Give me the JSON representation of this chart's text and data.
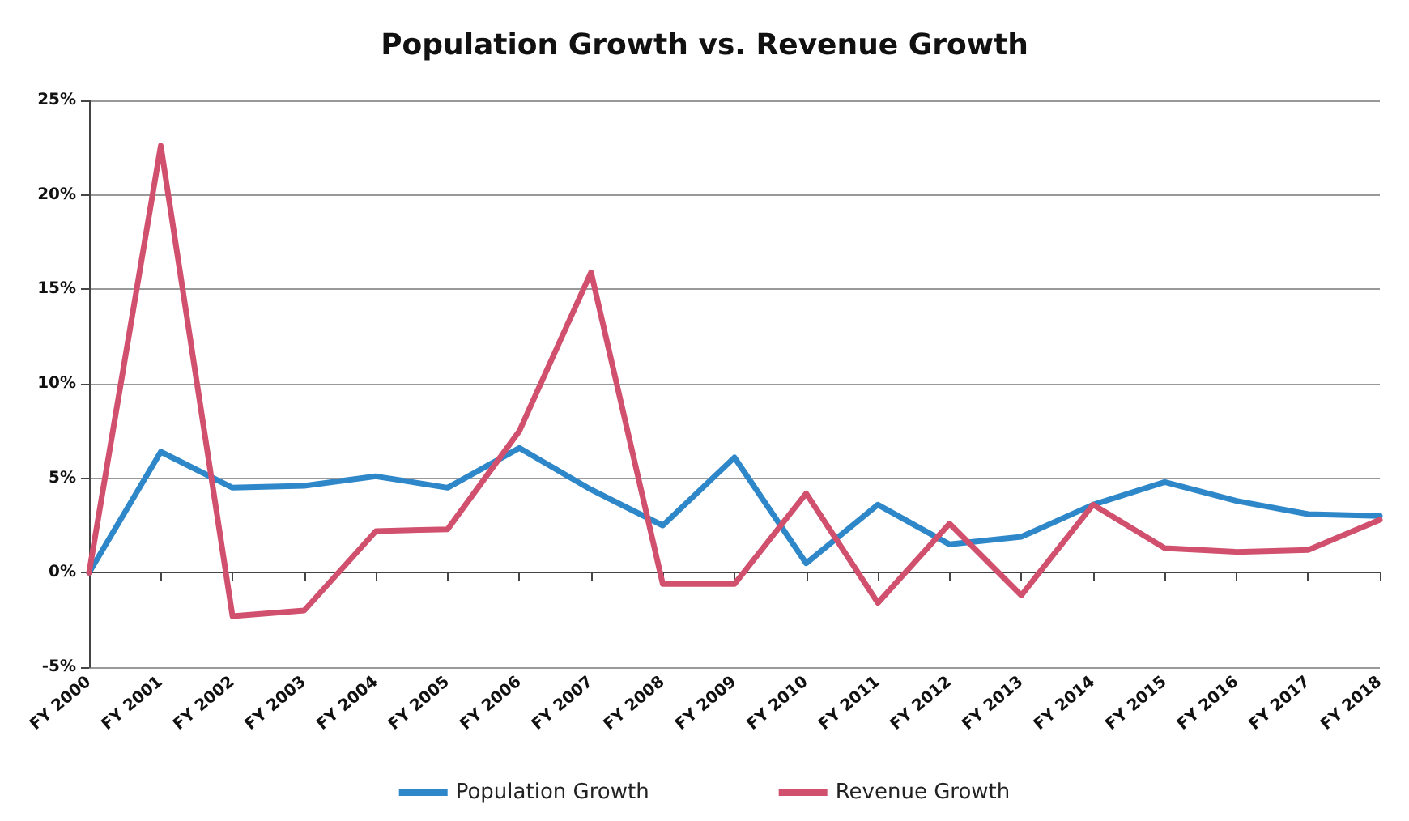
{
  "chart_data": {
    "type": "line",
    "title": "Population Growth vs. Revenue Growth",
    "categories": [
      "FY 2000",
      "FY 2001",
      "FY 2002",
      "FY 2003",
      "FY 2004",
      "FY 2005",
      "FY 2006",
      "FY 2007",
      "FY 2008",
      "FY 2009",
      "FY 2010",
      "FY 2011",
      "FY 2012",
      "FY 2013",
      "FY 2014",
      "FY 2015",
      "FY 2016",
      "FY 2017",
      "FY 2018"
    ],
    "series": [
      {
        "name": "Population Growth",
        "color": "#2e87c8",
        "values": [
          0,
          6.4,
          4.5,
          4.6,
          5.1,
          4.5,
          6.6,
          4.4,
          2.5,
          6.1,
          0.5,
          3.6,
          1.5,
          1.9,
          3.6,
          4.8,
          3.8,
          3.1,
          3.0
        ]
      },
      {
        "name": "Revenue Growth",
        "color": "#d0506e",
        "values": [
          0,
          22.6,
          -2.3,
          -2.0,
          2.2,
          2.3,
          7.5,
          15.9,
          -0.6,
          -0.6,
          4.2,
          -1.6,
          2.6,
          -1.2,
          3.6,
          1.3,
          1.1,
          1.2,
          2.8
        ]
      }
    ],
    "ylim": [
      -5,
      25
    ],
    "yticks": [
      {
        "value": -5,
        "label": "-5%"
      },
      {
        "value": 0,
        "label": "0%"
      },
      {
        "value": 5,
        "label": "5%"
      },
      {
        "value": 10,
        "label": "10%"
      },
      {
        "value": 15,
        "label": "15%"
      },
      {
        "value": 20,
        "label": "20%"
      },
      {
        "value": 25,
        "label": "25%"
      }
    ],
    "grid": "y",
    "legend": "bottom",
    "marker": "none",
    "line_style": "solid"
  }
}
